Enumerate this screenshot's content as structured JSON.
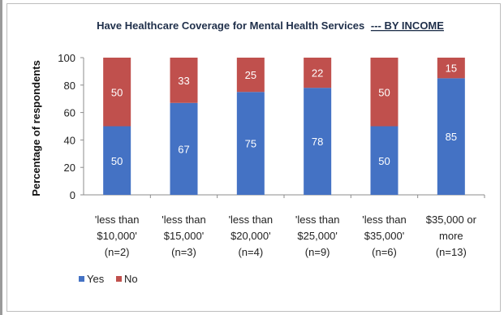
{
  "chart_data": {
    "type": "bar",
    "stacked": true,
    "title": "Have Healthcare Coverage for Mental Health Services",
    "title_suffix": "--- BY INCOME",
    "ylabel": "Percentage of respondents",
    "xlabel": "",
    "ylim": [
      0,
      100
    ],
    "yticks": [
      0,
      20,
      40,
      60,
      80,
      100
    ],
    "categories": [
      [
        "'less than",
        "$10,000'",
        "(n=2)"
      ],
      [
        "'less than",
        "$15,000'",
        "(n=3)"
      ],
      [
        "'less than",
        "$20,000'",
        "(n=4)"
      ],
      [
        "'less than",
        "$25,000'",
        "(n=9)"
      ],
      [
        "'less than",
        "$35,000'",
        "(n=6)"
      ],
      [
        "$35,000 or",
        "more",
        "(n=13)"
      ]
    ],
    "series": [
      {
        "name": "Yes",
        "color": "#4472c4",
        "values": [
          50,
          67,
          75,
          78,
          50,
          85
        ]
      },
      {
        "name": "No",
        "color": "#c0504d",
        "values": [
          50,
          33,
          25,
          22,
          50,
          15
        ]
      }
    ],
    "legend_position": "bottom-left",
    "grid": false
  }
}
